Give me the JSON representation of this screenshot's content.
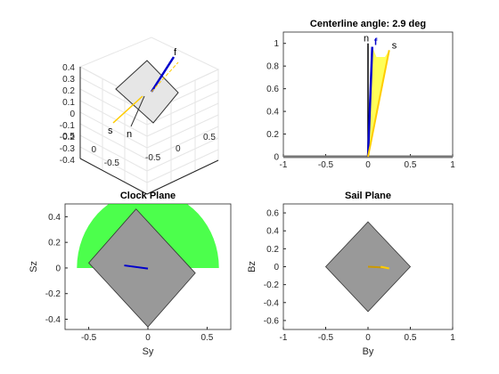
{
  "figure": {
    "background": "#ffffff",
    "axes_color": "#262626",
    "grid_color": "#e0e0e0",
    "panel_fill": "#999999",
    "cone_green": "#00ff00",
    "cone_yellow": "#ffff00",
    "vec_blue": "#0000cc",
    "vec_gold": "#ffcc00"
  },
  "chart_data": [
    {
      "id": "view3d",
      "type": "3d-vector-plot",
      "title": "",
      "xticks": [
        "0.5",
        "0",
        "-0.5"
      ],
      "yticks": [
        "0.5",
        "0",
        "-0.5"
      ],
      "zticks": [
        "0.4",
        "0.3",
        "0.2",
        "0.1",
        "0",
        "-0.1",
        "-0.2",
        "-0.3",
        "-0.4"
      ],
      "zlim": [
        -0.4,
        0.4
      ],
      "vector_labels": [
        {
          "name": "f",
          "text": "f"
        },
        {
          "name": "s",
          "text": "s"
        },
        {
          "name": "n",
          "text": "n"
        }
      ]
    },
    {
      "id": "centerline",
      "type": "line",
      "title": "Centerline angle: 2.9 deg",
      "xlim": [
        -1,
        1
      ],
      "ylim": [
        0,
        1.1
      ],
      "xticks": [
        -1,
        -0.5,
        0,
        0.5,
        1
      ],
      "yticks": [
        0,
        0.2,
        0.4,
        0.6,
        0.8,
        1
      ],
      "series": [
        {
          "name": "n",
          "x": [
            0,
            0.0
          ],
          "y": [
            0,
            1.0
          ],
          "color": "#000000"
        },
        {
          "name": "f",
          "x": [
            0,
            0.05
          ],
          "y": [
            0,
            0.97
          ],
          "color": "#0000cc"
        },
        {
          "name": "s",
          "x": [
            0,
            0.25
          ],
          "y": [
            0,
            0.94
          ],
          "color": "#ffcc00"
        }
      ],
      "cone": {
        "x": [
          0,
          0.05,
          0.1,
          0.15,
          0.2,
          0.25,
          0
        ],
        "y": [
          0,
          0.97,
          0.88,
          0.88,
          0.88,
          0.94,
          0
        ]
      },
      "baseline": {
        "y": 0,
        "xlim": [
          -1,
          1
        ]
      }
    },
    {
      "id": "clock",
      "type": "line",
      "title": "Clock Plane",
      "xlabel": "Sy",
      "ylabel": "Sz",
      "xlim": [
        -0.7,
        0.7
      ],
      "ylim": [
        -0.48,
        0.5
      ],
      "xticks": [
        -0.5,
        0,
        0.5
      ],
      "yticks": [
        -0.4,
        -0.2,
        0,
        0.2,
        0.4
      ],
      "cone_radius": 0.6,
      "sail_polygon": {
        "x": [
          -0.1,
          0.4,
          0.0,
          -0.5
        ],
        "y": [
          0.46,
          -0.04,
          -0.46,
          0.04
        ]
      },
      "vector": {
        "x": [
          -0.2,
          0.0
        ],
        "y": [
          0.02,
          -0.005
        ],
        "color": "#0000cc"
      }
    },
    {
      "id": "sail",
      "type": "line",
      "title": "Sail Plane",
      "xlabel": "By",
      "ylabel": "Bz",
      "xlim": [
        -1,
        1
      ],
      "ylim": [
        -0.7,
        0.7
      ],
      "xticks": [
        -1,
        -0.5,
        0,
        0.5,
        1
      ],
      "yticks": [
        -0.6,
        -0.4,
        -0.2,
        0,
        0.2,
        0.4,
        0.6
      ],
      "sail_polygon": {
        "x": [
          0,
          0.5,
          0,
          -0.5
        ],
        "y": [
          0.5,
          0,
          -0.5,
          0
        ]
      },
      "vectors": [
        {
          "x": [
            0.0,
            0.2
          ],
          "y": [
            0.0,
            -0.01
          ],
          "color": "#cc9900"
        },
        {
          "x": [
            0.15,
            0.25
          ],
          "y": [
            0.0,
            -0.02
          ],
          "color": "#ffcc00"
        }
      ]
    }
  ]
}
